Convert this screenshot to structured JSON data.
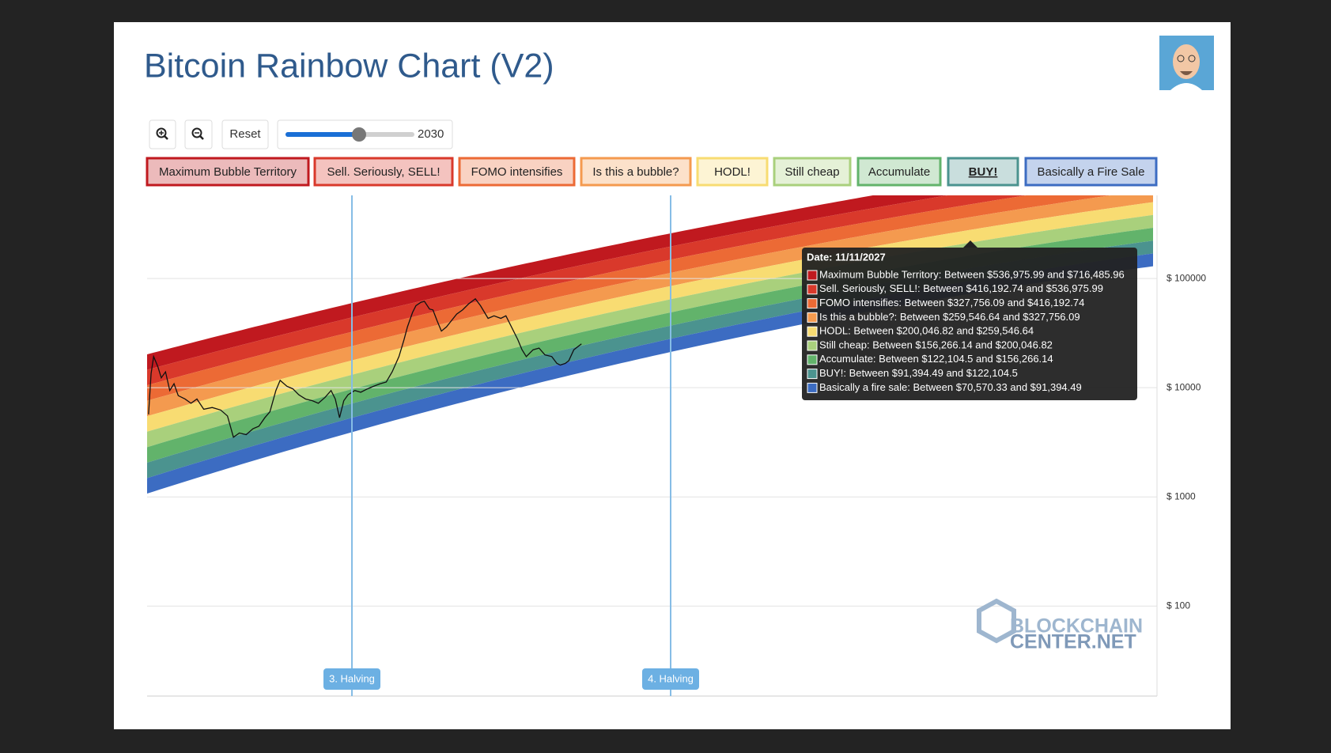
{
  "header": {
    "title": "Bitcoin Rainbow Chart (V2)"
  },
  "controls": {
    "reset": "Reset",
    "slider_value": "2030"
  },
  "legend": [
    {
      "label": "Maximum Bubble Territory",
      "color": "#c0191f"
    },
    {
      "label": "Sell. Seriously, SELL!",
      "color": "#d9392b"
    },
    {
      "label": "FOMO intensifies",
      "color": "#ec6a35"
    },
    {
      "label": "Is this a bubble?",
      "color": "#f49a4f"
    },
    {
      "label": "HODL!",
      "color": "#f8dc72"
    },
    {
      "label": "Still cheap",
      "color": "#a9d07c"
    },
    {
      "label": "Accumulate",
      "color": "#62b36b"
    },
    {
      "label": "BUY!",
      "color": "#4b938f"
    },
    {
      "label": "Basically a Fire Sale",
      "color": "#3c6cc2"
    }
  ],
  "chart_data": {
    "type": "line",
    "log_scale": true,
    "grid": true,
    "ylim": [
      15,
      577000
    ],
    "yticks": [
      {
        "value": 100,
        "label": "$ 100"
      },
      {
        "value": 1000,
        "label": "$ 1000"
      },
      {
        "value": 10000,
        "label": "$ 10000"
      },
      {
        "value": 100000,
        "label": "$ 100000"
      }
    ],
    "annotations": [
      "3. Halving",
      "4. Halving"
    ]
  },
  "tooltip": {
    "title": "Date: 11/11/2027",
    "lines": [
      "Maximum Bubble Territory: Between $536,975.99 and $716,485.96",
      "Sell. Seriously, SELL!: Between $416,192.74 and $536,975.99",
      "FOMO intensifies: Between $327,756.09 and $416,192.74",
      "Is this a bubble?: Between $259,546.64 and $327,756.09",
      "HODL: Between $200,046.82 and $259,546.64",
      "Still cheap: Between $156,266.14 and $200,046.82",
      "Accumulate: Between $122,104.5 and $156,266.14",
      "BUY!: Between $91,394.49 and $122,104.5",
      "Basically a fire sale: Between $70,570.33 and $91,394.49"
    ]
  },
  "watermark": {
    "line1": "BLOCKCHAIN",
    "line2": "CENTER.NET"
  }
}
